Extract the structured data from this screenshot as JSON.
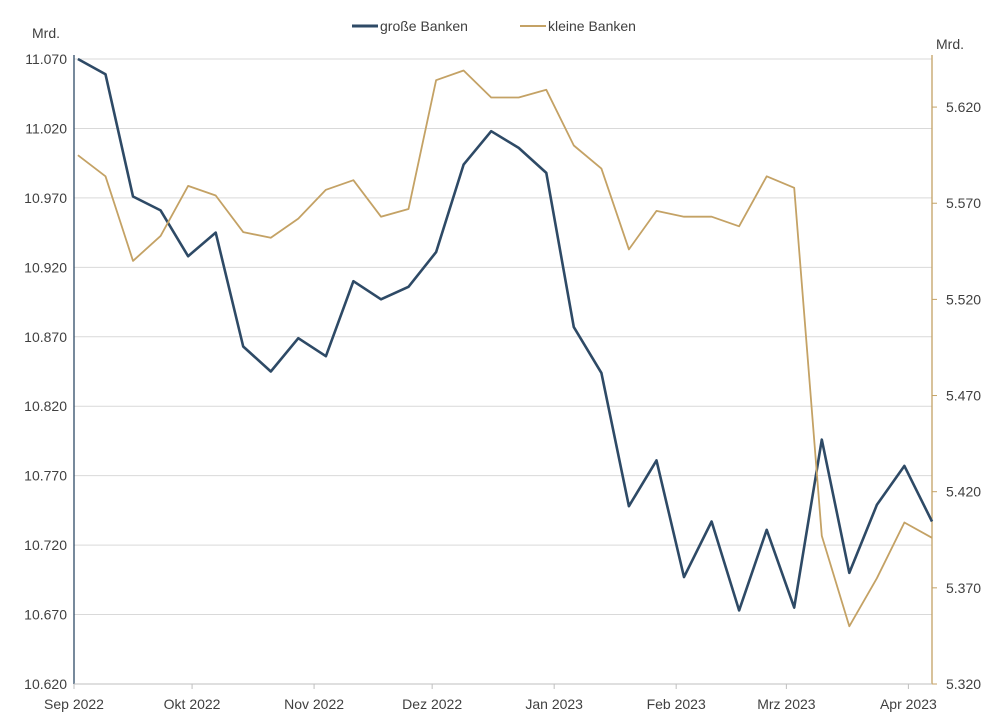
{
  "chart_data": {
    "type": "line",
    "left_axis_unit": "Mrd.",
    "right_axis_unit": "Mrd.",
    "x_tick_labels": [
      "Sep 2022",
      "Okt 2022",
      "Nov 2022",
      "Dez 2022",
      "Jan 2023",
      "Feb 2023",
      "Mrz 2023",
      "Apr 2023"
    ],
    "x_tick_dates": [
      "2022-09-01",
      "2022-10-01",
      "2022-11-01",
      "2022-12-01",
      "2023-01-01",
      "2023-02-01",
      "2023-03-01",
      "2023-04-01"
    ],
    "x_range": [
      "2022-09-01",
      "2023-04-07"
    ],
    "left_ticks": [
      "10.620",
      "10.670",
      "10.720",
      "10.770",
      "10.820",
      "10.870",
      "10.920",
      "10.970",
      "11.020",
      "11.070"
    ],
    "left_ylim": [
      10620,
      11070
    ],
    "right_ticks": [
      "5.320",
      "5.370",
      "5.420",
      "5.470",
      "5.520",
      "5.570",
      "5.620"
    ],
    "right_ylim": [
      5320,
      5645
    ],
    "grid": true,
    "legend_position": "top-center",
    "series": [
      {
        "name": "große Banken",
        "axis": "left",
        "color": "#2e4a66",
        "x": [
          "2022-09-02",
          "2022-09-09",
          "2022-09-16",
          "2022-09-23",
          "2022-09-30",
          "2022-10-07",
          "2022-10-14",
          "2022-10-21",
          "2022-10-28",
          "2022-11-04",
          "2022-11-11",
          "2022-11-18",
          "2022-11-25",
          "2022-12-02",
          "2022-12-09",
          "2022-12-16",
          "2022-12-23",
          "2022-12-30",
          "2023-01-06",
          "2023-01-13",
          "2023-01-20",
          "2023-01-27",
          "2023-02-03",
          "2023-02-10",
          "2023-02-17",
          "2023-02-24",
          "2023-03-03",
          "2023-03-10",
          "2023-03-17",
          "2023-03-24",
          "2023-03-31",
          "2023-04-07"
        ],
        "values": [
          11070,
          11059,
          10971,
          10961,
          10928,
          10945,
          10863,
          10845,
          10869,
          10856,
          10910,
          10897,
          10906,
          10931,
          10994,
          11018,
          11006,
          10988,
          10877,
          10844,
          10748,
          10781,
          10697,
          10737,
          10673,
          10731,
          10675,
          10796,
          10700,
          10749,
          10777,
          10737
        ]
      },
      {
        "name": "kleine Banken",
        "axis": "right",
        "color": "#c4a265",
        "x": [
          "2022-09-02",
          "2022-09-09",
          "2022-09-16",
          "2022-09-23",
          "2022-09-30",
          "2022-10-07",
          "2022-10-14",
          "2022-10-21",
          "2022-10-28",
          "2022-11-04",
          "2022-11-11",
          "2022-11-18",
          "2022-11-25",
          "2022-12-02",
          "2022-12-09",
          "2022-12-16",
          "2022-12-23",
          "2022-12-30",
          "2023-01-06",
          "2023-01-13",
          "2023-01-20",
          "2023-01-27",
          "2023-02-03",
          "2023-02-10",
          "2023-02-17",
          "2023-02-24",
          "2023-03-03",
          "2023-03-10",
          "2023-03-17",
          "2023-03-24",
          "2023-03-31",
          "2023-04-07"
        ],
        "values": [
          5595,
          5584,
          5540,
          5553,
          5579,
          5574,
          5555,
          5552,
          5562,
          5577,
          5582,
          5563,
          5567,
          5634,
          5639,
          5625,
          5625,
          5629,
          5600,
          5588,
          5546,
          5566,
          5563,
          5563,
          5558,
          5584,
          5578,
          5397,
          5350,
          5375,
          5404,
          5396
        ]
      }
    ]
  }
}
